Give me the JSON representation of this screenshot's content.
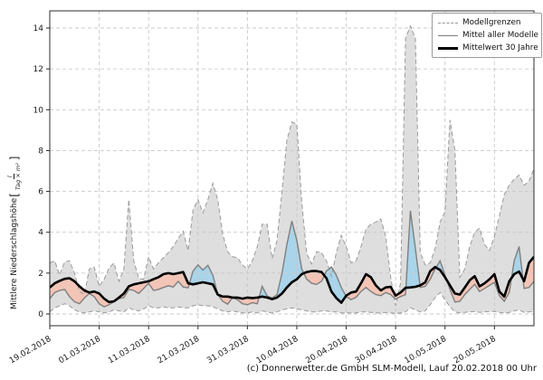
{
  "figure": {
    "caption": "(c) Donnerwetter.de GmbH SLM-Modell, Lauf 20.02.2018 00 Uhr"
  },
  "chart_data": {
    "type": "line",
    "title": "",
    "ylabel_text": "Mittlere Niederschlagshöhe",
    "ylabel_bracket_open": "[",
    "ylabel_bracket_close": "]",
    "ylabel_unit_numerator": "l",
    "ylabel_unit_denominator": "Tag × m²",
    "x_start_date": "19.02.2018",
    "x_tick_labels": [
      "19.02.2018",
      "01.03.2018",
      "11.03.2018",
      "21.03.2018",
      "31.03.2018",
      "10.04.2018",
      "20.04.2018",
      "30.04.2018",
      "10.05.2018",
      "20.05.2018"
    ],
    "x_tick_days": [
      0,
      10,
      20,
      30,
      40,
      50,
      60,
      70,
      80,
      90
    ],
    "y_ticks": [
      0,
      2,
      4,
      6,
      8,
      10,
      12,
      14
    ],
    "ylim": [
      0,
      14
    ],
    "grid": true,
    "legend_position": "upper right",
    "legend": [
      "Modellgrenzen",
      "Mittel aller Modelle",
      "Mittelwert 30 Jahre"
    ],
    "colors": {
      "band_fill": "#dedede",
      "band_edge": "#9a9a9a",
      "model_mean_line": "#7f7f7f",
      "mean30_line": "#000000",
      "above_fill": "#a9d4e9",
      "below_fill": "#f2c5b7",
      "grid": "#c9c9c9",
      "spine": "#2b2b2b"
    },
    "series": [
      {
        "name": "Modellgrenzen (obere Grenze)",
        "style": "dashed-gray",
        "values": [
          2.5,
          2.6,
          1.9,
          2.55,
          2.6,
          2.0,
          1.1,
          0.95,
          2.2,
          2.3,
          1.35,
          1.7,
          2.25,
          2.5,
          1.6,
          2.2,
          5.6,
          2.6,
          1.75,
          1.7,
          2.8,
          2.2,
          2.5,
          2.75,
          3.0,
          3.3,
          3.7,
          4.05,
          3.1,
          5.1,
          5.6,
          4.95,
          5.6,
          6.4,
          5.6,
          3.9,
          3.05,
          2.8,
          2.75,
          2.4,
          2.2,
          2.6,
          3.3,
          4.4,
          4.4,
          2.7,
          3.6,
          6.0,
          8.5,
          9.4,
          9.3,
          5.5,
          2.95,
          2.45,
          3.05,
          3.0,
          2.6,
          1.85,
          3.0,
          3.85,
          3.3,
          2.5,
          2.6,
          3.3,
          4.15,
          4.4,
          4.5,
          4.65,
          3.8,
          1.8,
          0.4,
          1.5,
          13.5,
          14.1,
          13.5,
          3.0,
          2.4,
          2.5,
          3.2,
          4.5,
          5.0,
          9.5,
          8.0,
          1.8,
          2.2,
          3.3,
          4.0,
          4.2,
          3.4,
          3.1,
          3.8,
          4.8,
          5.85,
          6.3,
          6.6,
          6.8,
          6.3,
          6.5,
          7.1
        ]
      },
      {
        "name": "Modellgrenzen (untere Grenze)",
        "style": "dashed-gray",
        "values": [
          0.1,
          0.3,
          0.4,
          0.5,
          0.4,
          0.2,
          0.1,
          0.05,
          0.1,
          0.15,
          0.1,
          0.05,
          0.1,
          0.2,
          0.15,
          0.1,
          0.3,
          0.2,
          0.15,
          0.25,
          0.4,
          0.3,
          0.3,
          0.35,
          0.3,
          0.3,
          0.35,
          0.3,
          0.3,
          0.4,
          0.45,
          0.4,
          0.4,
          0.35,
          0.25,
          0.15,
          0.1,
          0.15,
          0.1,
          0.05,
          0.05,
          0.1,
          0.05,
          0.15,
          0.1,
          0.05,
          0.1,
          0.2,
          0.25,
          0.3,
          0.25,
          0.2,
          0.15,
          0.1,
          0.1,
          0.15,
          0.15,
          0.1,
          0.1,
          0.05,
          0.05,
          0.05,
          0.05,
          0.1,
          0.1,
          0.08,
          0.05,
          0.05,
          0.08,
          0.05,
          0.03,
          0.05,
          0.1,
          0.3,
          0.2,
          0.1,
          0.15,
          0.45,
          0.8,
          1.05,
          0.7,
          0.35,
          0.1,
          0.05,
          0.08,
          0.1,
          0.12,
          0.08,
          0.1,
          0.12,
          0.12,
          0.08,
          0.05,
          0.08,
          0.15,
          0.2,
          0.08,
          0.1,
          0.12
        ]
      },
      {
        "name": "Mittel aller Modelle",
        "style": "solid-gray",
        "values": [
          0.75,
          1.05,
          1.15,
          1.2,
          0.85,
          0.6,
          0.5,
          0.78,
          1.0,
          0.85,
          0.5,
          0.35,
          0.45,
          0.6,
          0.75,
          0.8,
          1.2,
          1.15,
          1.0,
          1.25,
          1.5,
          1.15,
          1.2,
          1.3,
          1.38,
          1.32,
          1.6,
          1.32,
          1.28,
          2.1,
          2.4,
          2.15,
          2.38,
          1.9,
          0.95,
          0.62,
          0.48,
          0.8,
          0.7,
          0.5,
          0.45,
          0.55,
          0.5,
          1.35,
          0.88,
          0.78,
          0.95,
          2.0,
          3.4,
          4.55,
          3.6,
          2.2,
          1.7,
          1.5,
          1.45,
          1.6,
          2.1,
          2.3,
          1.9,
          1.3,
          0.85,
          0.7,
          0.82,
          1.1,
          1.3,
          1.1,
          0.95,
          0.9,
          1.05,
          0.95,
          0.72,
          0.85,
          0.95,
          5.05,
          3.2,
          1.3,
          1.35,
          1.7,
          2.2,
          2.6,
          1.9,
          1.2,
          0.58,
          0.62,
          0.95,
          1.2,
          1.45,
          1.1,
          1.25,
          1.4,
          1.55,
          0.9,
          0.62,
          1.05,
          2.6,
          3.3,
          1.25,
          1.3,
          1.6
        ]
      },
      {
        "name": "Mittelwert 30 Jahre",
        "style": "solid-black-thick",
        "values": [
          1.3,
          1.5,
          1.62,
          1.72,
          1.75,
          1.6,
          1.35,
          1.15,
          1.05,
          1.1,
          1.0,
          0.75,
          0.58,
          0.62,
          0.8,
          1.0,
          1.35,
          1.45,
          1.5,
          1.55,
          1.6,
          1.7,
          1.8,
          1.95,
          2.0,
          1.95,
          2.0,
          2.05,
          1.5,
          1.45,
          1.5,
          1.55,
          1.5,
          1.45,
          0.95,
          0.85,
          0.85,
          0.8,
          0.8,
          0.75,
          0.8,
          0.78,
          0.8,
          0.85,
          0.8,
          0.72,
          0.8,
          1.0,
          1.3,
          1.55,
          1.7,
          1.95,
          2.05,
          2.1,
          2.1,
          2.05,
          1.75,
          1.1,
          0.78,
          0.55,
          0.9,
          1.05,
          1.1,
          1.5,
          1.95,
          1.8,
          1.4,
          1.15,
          1.3,
          1.33,
          0.9,
          1.05,
          1.28,
          1.3,
          1.33,
          1.4,
          1.55,
          2.1,
          2.3,
          2.15,
          1.8,
          1.4,
          1.0,
          0.95,
          1.3,
          1.65,
          1.85,
          1.35,
          1.5,
          1.7,
          1.95,
          1.1,
          0.85,
          1.6,
          1.95,
          2.08,
          1.6,
          2.5,
          2.8
        ]
      }
    ]
  }
}
